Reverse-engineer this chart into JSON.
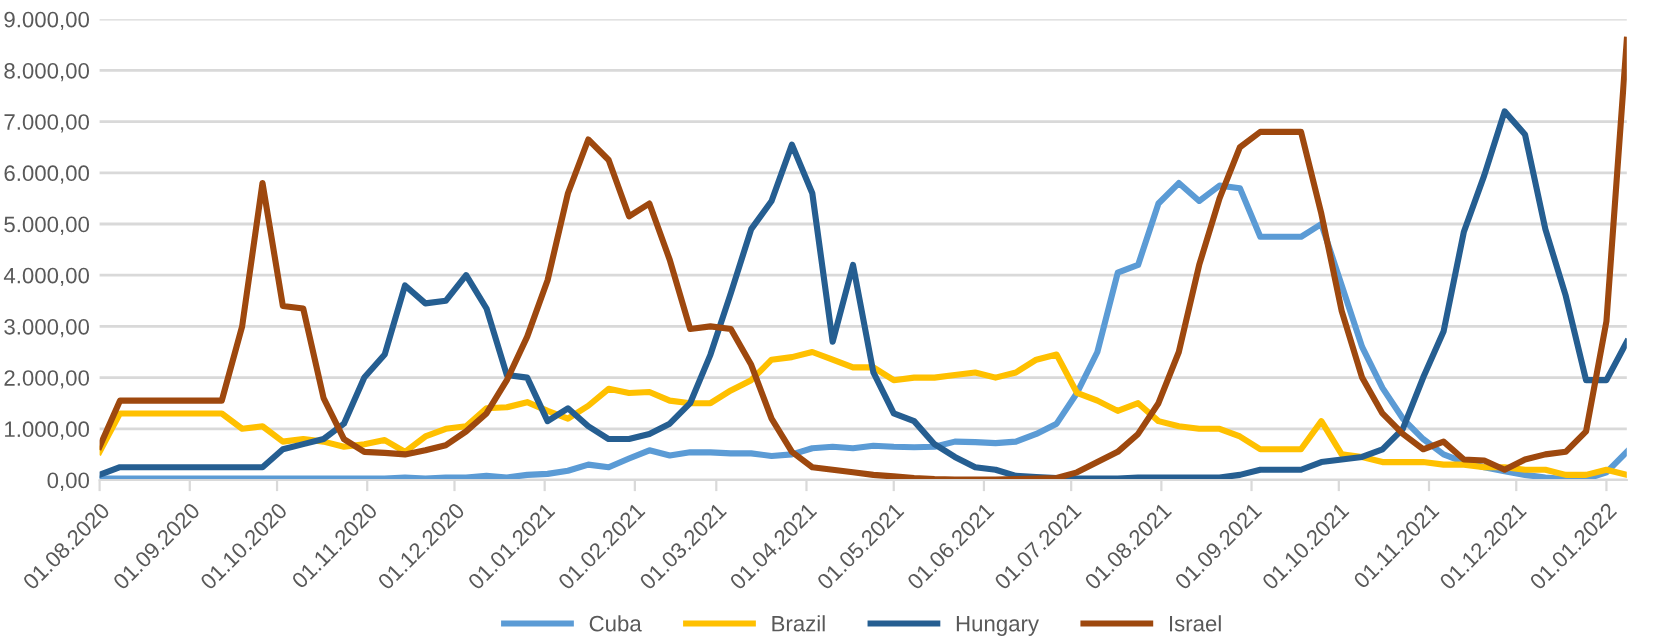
{
  "chart_data": {
    "type": "line",
    "x": [
      "2020-08-01",
      "2020-08-08",
      "2020-08-15",
      "2020-08-22",
      "2020-08-29",
      "2020-09-05",
      "2020-09-12",
      "2020-09-19",
      "2020-09-26",
      "2020-10-03",
      "2020-10-10",
      "2020-10-17",
      "2020-10-24",
      "2020-10-31",
      "2020-11-07",
      "2020-11-14",
      "2020-11-21",
      "2020-11-28",
      "2020-12-05",
      "2020-12-12",
      "2020-12-19",
      "2020-12-26",
      "2021-01-02",
      "2021-01-09",
      "2021-01-16",
      "2021-01-23",
      "2021-01-30",
      "2021-02-06",
      "2021-02-13",
      "2021-02-20",
      "2021-02-27",
      "2021-03-06",
      "2021-03-13",
      "2021-03-20",
      "2021-03-27",
      "2021-04-03",
      "2021-04-10",
      "2021-04-17",
      "2021-04-24",
      "2021-05-01",
      "2021-05-08",
      "2021-05-15",
      "2021-05-22",
      "2021-05-29",
      "2021-06-05",
      "2021-06-12",
      "2021-06-19",
      "2021-06-26",
      "2021-07-03",
      "2021-07-10",
      "2021-07-17",
      "2021-07-24",
      "2021-07-31",
      "2021-08-07",
      "2021-08-14",
      "2021-08-21",
      "2021-08-28",
      "2021-09-04",
      "2021-09-11",
      "2021-09-18",
      "2021-09-25",
      "2021-10-02",
      "2021-10-09",
      "2021-10-16",
      "2021-10-23",
      "2021-10-30",
      "2021-11-06",
      "2021-11-13",
      "2021-11-20",
      "2021-11-27",
      "2021-12-04",
      "2021-12-11",
      "2021-12-18",
      "2021-12-25",
      "2022-01-01",
      "2022-01-08"
    ],
    "series": [
      {
        "name": "Cuba",
        "color": "#5b9bd5",
        "values": [
          30,
          30,
          30,
          30,
          30,
          30,
          30,
          30,
          30,
          30,
          30,
          30,
          30,
          30,
          30,
          50,
          30,
          50,
          50,
          80,
          50,
          100,
          120,
          180,
          300,
          250,
          420,
          580,
          480,
          540,
          540,
          520,
          520,
          470,
          500,
          620,
          650,
          620,
          670,
          650,
          640,
          650,
          750,
          740,
          720,
          750,
          900,
          1100,
          1700,
          2500,
          4050,
          4200,
          5400,
          5800,
          5450,
          5750,
          5700,
          4750,
          4750,
          4750,
          5000,
          3800,
          2600,
          1800,
          1200,
          800,
          500,
          350,
          250,
          170,
          100,
          50,
          20,
          20,
          150,
          550
        ]
      },
      {
        "name": "Brazil",
        "color": "#ffc000",
        "values": [
          550,
          1300,
          1300,
          1300,
          1300,
          1300,
          1300,
          1000,
          1050,
          750,
          800,
          750,
          650,
          700,
          780,
          550,
          850,
          1000,
          1050,
          1400,
          1420,
          1520,
          1350,
          1200,
          1450,
          1780,
          1700,
          1720,
          1550,
          1500,
          1500,
          1750,
          1950,
          2350,
          2400,
          2500,
          2350,
          2200,
          2200,
          1950,
          2000,
          2000,
          2050,
          2100,
          2000,
          2100,
          2350,
          2450,
          1700,
          1550,
          1350,
          1500,
          1150,
          1050,
          1000,
          1000,
          850,
          600,
          600,
          600,
          1150,
          500,
          450,
          350,
          350,
          350,
          300,
          300,
          250,
          250,
          200,
          200,
          100,
          100,
          200,
          100
        ]
      },
      {
        "name": "Hungary",
        "color": "#255e91",
        "values": [
          100,
          250,
          250,
          250,
          250,
          250,
          250,
          250,
          250,
          600,
          700,
          800,
          1100,
          2000,
          2450,
          3800,
          3450,
          3500,
          4000,
          3350,
          2050,
          2000,
          1150,
          1400,
          1050,
          800,
          800,
          900,
          1100,
          1500,
          2450,
          3650,
          4900,
          5450,
          6550,
          5600,
          2700,
          4200,
          2100,
          1300,
          1150,
          700,
          450,
          250,
          200,
          80,
          60,
          40,
          30,
          30,
          30,
          50,
          50,
          50,
          50,
          50,
          100,
          200,
          200,
          200,
          350,
          400,
          450,
          600,
          1000,
          2000,
          2900,
          4850,
          5950,
          7200,
          6750,
          4900,
          3600,
          1950,
          1950,
          2700
        ]
      },
      {
        "name": "Israel",
        "color": "#9e480e",
        "values": [
          650,
          1550,
          1550,
          1550,
          1550,
          1550,
          1550,
          3000,
          5800,
          3400,
          3350,
          1600,
          800,
          550,
          530,
          500,
          580,
          680,
          950,
          1300,
          1950,
          2800,
          3900,
          5600,
          6650,
          6250,
          5150,
          5400,
          4300,
          2950,
          3000,
          2950,
          2250,
          1200,
          550,
          250,
          200,
          150,
          100,
          70,
          40,
          20,
          10,
          10,
          10,
          20,
          30,
          40,
          150,
          350,
          550,
          900,
          1500,
          2500,
          4200,
          5500,
          6500,
          6800,
          6800,
          6800,
          5200,
          3300,
          2000,
          1300,
          900,
          600,
          750,
          400,
          380,
          200,
          400,
          500,
          550,
          950,
          3100,
          8600
        ]
      }
    ],
    "xlim": [
      "2020-08-01",
      "2022-01-08"
    ],
    "xticks": [
      {
        "value": "2020-08-01",
        "label": "01.08.2020"
      },
      {
        "value": "2020-09-01",
        "label": "01.09.2020"
      },
      {
        "value": "2020-10-01",
        "label": "01.10.2020"
      },
      {
        "value": "2020-11-01",
        "label": "01.11.2020"
      },
      {
        "value": "2020-12-01",
        "label": "01.12.2020"
      },
      {
        "value": "2021-01-01",
        "label": "01.01.2021"
      },
      {
        "value": "2021-02-01",
        "label": "01.02.2021"
      },
      {
        "value": "2021-03-01",
        "label": "01.03.2021"
      },
      {
        "value": "2021-04-01",
        "label": "01.04.2021"
      },
      {
        "value": "2021-05-01",
        "label": "01.05.2021"
      },
      {
        "value": "2021-06-01",
        "label": "01.06.2021"
      },
      {
        "value": "2021-07-01",
        "label": "01.07.2021"
      },
      {
        "value": "2021-08-01",
        "label": "01.08.2021"
      },
      {
        "value": "2021-09-01",
        "label": "01.09.2021"
      },
      {
        "value": "2021-10-01",
        "label": "01.10.2021"
      },
      {
        "value": "2021-11-01",
        "label": "01.11.2021"
      },
      {
        "value": "2021-12-01",
        "label": "01.12.2021"
      },
      {
        "value": "2022-01-01",
        "label": "01.01.2022"
      }
    ],
    "ylim": [
      0,
      9000
    ],
    "yticks": [
      {
        "value": 0,
        "label": "0,00"
      },
      {
        "value": 1000,
        "label": "1.000,00"
      },
      {
        "value": 2000,
        "label": "2.000,00"
      },
      {
        "value": 3000,
        "label": "3.000,00"
      },
      {
        "value": 4000,
        "label": "4.000,00"
      },
      {
        "value": 5000,
        "label": "5.000,00"
      },
      {
        "value": 6000,
        "label": "6.000,00"
      },
      {
        "value": 7000,
        "label": "7.000,00"
      },
      {
        "value": 8000,
        "label": "8.000,00"
      },
      {
        "value": 9000,
        "label": "9.000,00"
      }
    ],
    "grid": "y",
    "legend": "bottom",
    "marker": "none",
    "line_style": "solid"
  }
}
